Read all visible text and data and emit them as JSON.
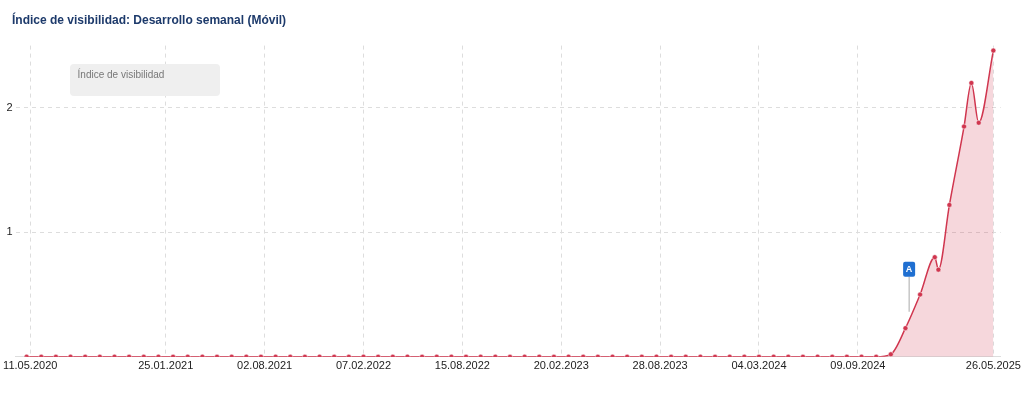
{
  "chart_data": {
    "type": "area",
    "title": "Índice de visibilidad: Desarrollo semanal (Móvil)",
    "annotations": [
      "Índice de visibilidad",
      {
        "text": "A",
        "x": "2024-12-16"
      }
    ],
    "x": [
      "2020-05-04",
      "2020-06-01",
      "2020-06-29",
      "2020-07-27",
      "2020-08-24",
      "2020-09-21",
      "2020-10-19",
      "2020-11-16",
      "2020-12-14",
      "2021-01-11",
      "2021-02-08",
      "2021-03-08",
      "2021-04-05",
      "2021-05-03",
      "2021-05-31",
      "2021-06-28",
      "2021-07-26",
      "2021-08-23",
      "2021-09-20",
      "2021-10-18",
      "2021-11-15",
      "2021-12-13",
      "2022-01-10",
      "2022-02-07",
      "2022-03-07",
      "2022-04-04",
      "2022-05-02",
      "2022-05-30",
      "2022-06-27",
      "2022-07-25",
      "2022-08-22",
      "2022-09-19",
      "2022-10-17",
      "2022-11-14",
      "2022-12-12",
      "2023-01-09",
      "2023-02-06",
      "2023-03-06",
      "2023-04-03",
      "2023-05-01",
      "2023-05-29",
      "2023-06-26",
      "2023-07-24",
      "2023-08-21",
      "2023-09-18",
      "2023-10-16",
      "2023-11-13",
      "2023-12-11",
      "2024-01-08",
      "2024-02-05",
      "2024-03-04",
      "2024-04-01",
      "2024-04-29",
      "2024-05-27",
      "2024-06-24",
      "2024-07-22",
      "2024-08-19",
      "2024-09-16",
      "2024-10-14",
      "2024-11-11",
      "2024-12-09",
      "2025-01-06",
      "2025-02-03",
      "2025-02-10",
      "2025-03-03",
      "2025-03-31",
      "2025-04-14",
      "2025-04-28",
      "2025-05-26"
    ],
    "series": [
      {
        "color": "#d0364f",
        "values": [
          0,
          0,
          0,
          0,
          0,
          0,
          0,
          0,
          0,
          0,
          0,
          0,
          0,
          0,
          0,
          0,
          0,
          0,
          0,
          0,
          0,
          0,
          0,
          0,
          0,
          0,
          0,
          0,
          0,
          0,
          0,
          0,
          0,
          0,
          0,
          0,
          0,
          0,
          0,
          0,
          0,
          0,
          0,
          0,
          0,
          0,
          0,
          0,
          0,
          0,
          0,
          0,
          0,
          0,
          0,
          0,
          0,
          0,
          0,
          0.02,
          0.23,
          0.5,
          0.8,
          0.7,
          1.22,
          1.85,
          2.2,
          1.88,
          2.46
        ]
      }
    ],
    "xlim": [
      "2020-04-13",
      "2025-06-09"
    ],
    "xticks": [
      {
        "value": "2020-05-11",
        "label": "11.05.2020"
      },
      {
        "value": "2021-01-25",
        "label": "25.01.2021"
      },
      {
        "value": "2021-08-02",
        "label": "02.08.2021"
      },
      {
        "value": "2022-02-07",
        "label": "07.02.2022"
      },
      {
        "value": "2022-08-15",
        "label": "15.08.2022"
      },
      {
        "value": "2023-02-20",
        "label": "20.02.2023"
      },
      {
        "value": "2023-08-28",
        "label": "28.08.2023"
      },
      {
        "value": "2024-03-04",
        "label": "04.03.2024"
      },
      {
        "value": "2024-09-09",
        "label": "09.09.2024"
      },
      {
        "value": "2025-05-26",
        "label": "26.05.2025"
      }
    ],
    "ylim": [
      0,
      2.5
    ],
    "yticks": [
      {
        "value": 0,
        "label": null
      },
      1,
      2
    ],
    "grid": true,
    "legend": false,
    "marker": "circle",
    "line_style": "solid"
  }
}
